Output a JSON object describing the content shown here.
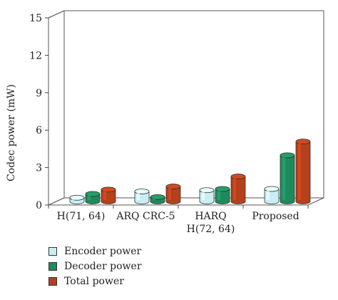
{
  "chart_data": {
    "type": "bar",
    "title": "",
    "xlabel": "",
    "ylabel": "Codec power (mW)",
    "ylim": [
      0,
      15
    ],
    "yticks": [
      0,
      3,
      6,
      9,
      12,
      15
    ],
    "grid": true,
    "legend_position": "bottom-left",
    "categories": [
      "H(71, 64)",
      "ARQ CRC-5",
      "HARQ H(72, 64)",
      "Proposed"
    ],
    "category_lines": [
      [
        "H(71, 64)"
      ],
      [
        "ARQ CRC-5"
      ],
      [
        "HARQ",
        "H(72, 64)"
      ],
      [
        "Proposed"
      ]
    ],
    "series": [
      {
        "name": "Encoder power",
        "values": [
          0.3,
          0.8,
          0.9,
          1.0
        ],
        "color": "#c9eef2"
      },
      {
        "name": "Decoder power",
        "values": [
          0.6,
          0.35,
          1.0,
          3.7
        ],
        "color": "#1f8a5c"
      },
      {
        "name": "Total power",
        "values": [
          0.95,
          1.2,
          2.0,
          4.8
        ],
        "color": "#b5401c"
      }
    ]
  }
}
